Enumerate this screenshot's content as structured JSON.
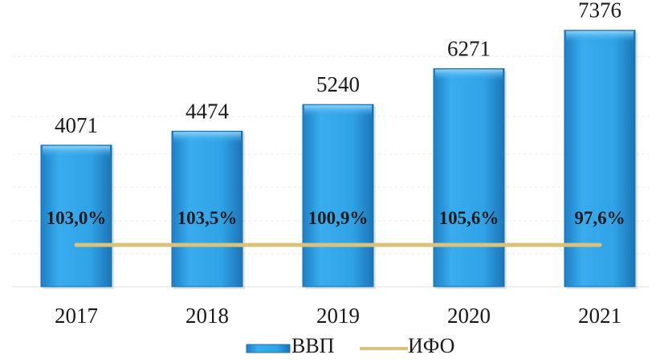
{
  "chart_data": {
    "type": "bar",
    "categories": [
      "2017",
      "2018",
      "2019",
      "2020",
      "2021"
    ],
    "series": [
      {
        "name": "ВВП",
        "type": "bar",
        "values": [
          4071,
          4474,
          5240,
          6271,
          7376
        ],
        "value_labels": [
          "4071",
          "4474",
          "5240",
          "6271",
          "7376"
        ],
        "color": "#2fa3e6"
      },
      {
        "name": "ИФО",
        "type": "line",
        "values": [
          103.0,
          103.5,
          100.9,
          105.6,
          97.6
        ],
        "value_labels": [
          "103,0%",
          "103,5%",
          "100,9%",
          "105,6%",
          "97,6%"
        ],
        "color": "#d9c27a"
      }
    ],
    "ylim": [
      0,
      7600
    ],
    "grid": true,
    "legend": "bottom"
  }
}
